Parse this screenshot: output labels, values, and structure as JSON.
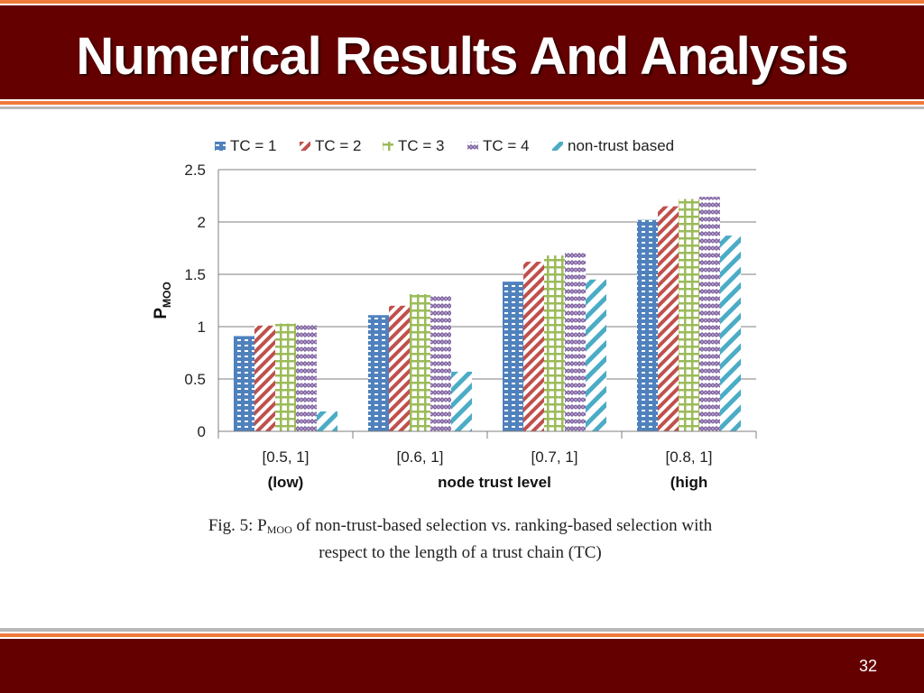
{
  "slide": {
    "title": "Numerical Results And Analysis",
    "page_number": "32"
  },
  "caption": {
    "prefix": "Fig. 5: P",
    "sub": "MOO",
    "line1_rest": " of non-trust-based selection vs. ranking-based selection with",
    "line2": "respect to the length of a trust chain (TC)"
  },
  "chart_data": {
    "type": "bar",
    "categories": [
      "[0.5, 1]",
      "[0.6, 1]",
      "[0.7, 1]",
      "[0.8, 1]"
    ],
    "category_sublabels": [
      "(low)",
      "",
      "",
      "(high"
    ],
    "xlabel": "node trust level",
    "ylabel": "P",
    "ylabel_sub": "MOO",
    "ylim": [
      0,
      2.5
    ],
    "yticks": [
      "0",
      "0.5",
      "1",
      "1.5",
      "2",
      "2.5"
    ],
    "grid": true,
    "legend_position": "top",
    "series": [
      {
        "name": "TC = 1",
        "color": "#4f81bd",
        "pattern": "dots",
        "values": [
          0.91,
          1.11,
          1.43,
          2.02
        ]
      },
      {
        "name": "TC = 2",
        "color": "#c0504d",
        "pattern": "diagonal",
        "values": [
          1.01,
          1.2,
          1.62,
          2.15
        ]
      },
      {
        "name": "TC = 3",
        "color": "#9bbb59",
        "pattern": "grid",
        "values": [
          1.03,
          1.31,
          1.68,
          2.22
        ]
      },
      {
        "name": "TC = 4",
        "color": "#8064a2",
        "pattern": "zigzag",
        "values": [
          1.03,
          1.3,
          1.71,
          2.24
        ]
      },
      {
        "name": "non-trust based",
        "color": "#4bacc6",
        "pattern": "wide-diagonal",
        "values": [
          0.19,
          0.57,
          1.45,
          1.87
        ]
      }
    ]
  }
}
